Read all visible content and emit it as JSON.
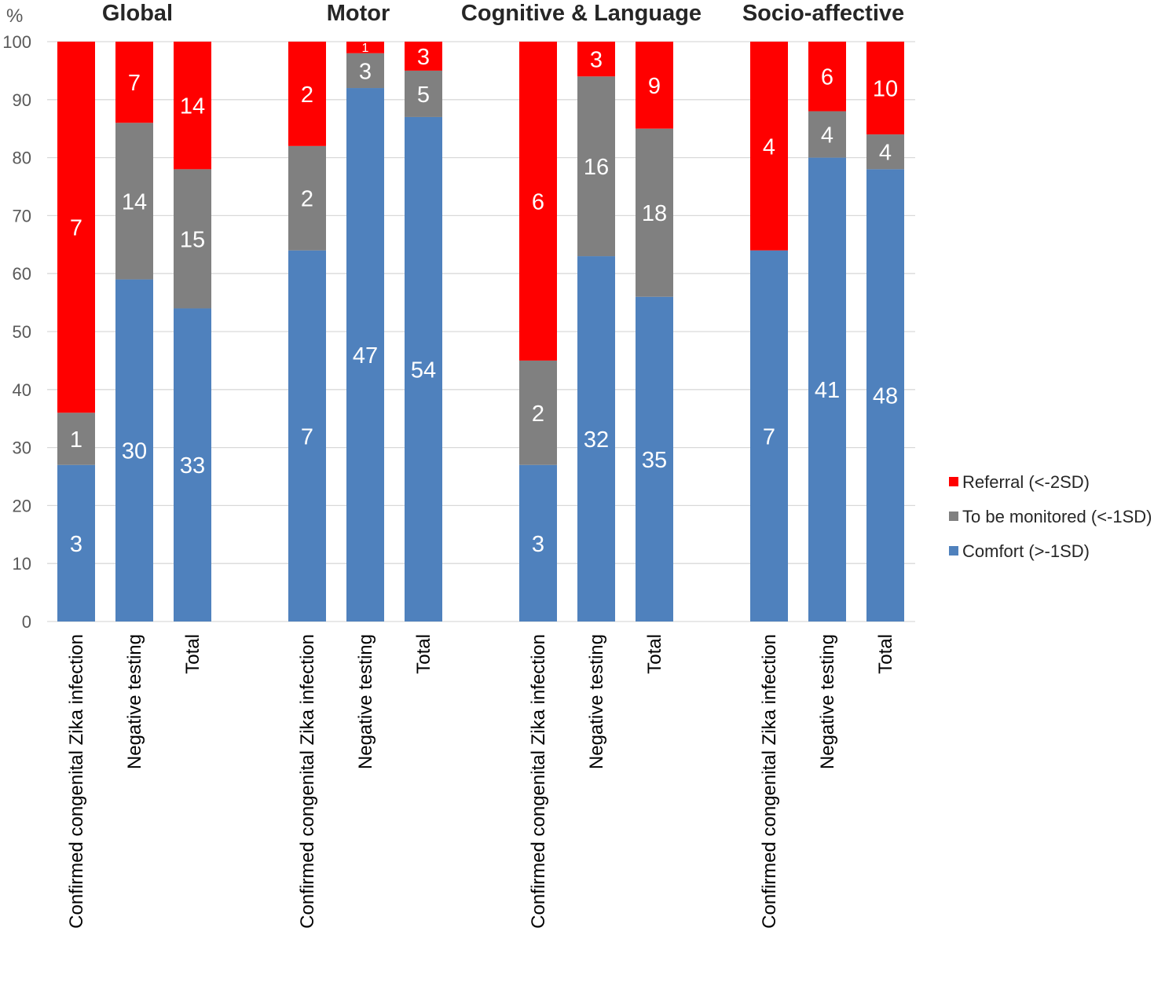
{
  "chart_data": {
    "type": "bar",
    "stacked": true,
    "ylabel": "%",
    "ylim": [
      0,
      100
    ],
    "yticks": [
      "0",
      "10",
      "20",
      "30",
      "40",
      "50",
      "60",
      "70",
      "80",
      "90",
      "100"
    ],
    "grid": true,
    "legend_position": "right",
    "groups": [
      {
        "title": "Global",
        "bars": [
          {
            "category": "Confirmed congenital Zika infection",
            "comfort": 27,
            "monitored": 9,
            "referral": 64,
            "labels": [
              "3",
              "1",
              "7"
            ]
          },
          {
            "category": "Negative testing",
            "comfort": 59,
            "monitored": 27,
            "referral": 14,
            "labels": [
              "30",
              "14",
              "7"
            ]
          },
          {
            "category": "Total",
            "comfort": 54,
            "monitored": 24,
            "referral": 22,
            "labels": [
              "33",
              "15",
              "14"
            ]
          }
        ]
      },
      {
        "title": "Motor",
        "bars": [
          {
            "category": "Confirmed congenital Zika infection",
            "comfort": 64,
            "monitored": 18,
            "referral": 18,
            "labels": [
              "7",
              "2",
              "2"
            ]
          },
          {
            "category": "Negative testing",
            "comfort": 92,
            "monitored": 6,
            "referral": 2,
            "labels": [
              "47",
              "3",
              "1"
            ]
          },
          {
            "category": "Total",
            "comfort": 87,
            "monitored": 8,
            "referral": 5,
            "labels": [
              "54",
              "5",
              "3"
            ]
          }
        ]
      },
      {
        "title": "Cognitive & Language",
        "bars": [
          {
            "category": "Confirmed congenital Zika infection",
            "comfort": 27,
            "monitored": 18,
            "referral": 55,
            "labels": [
              "3",
              "2",
              "6"
            ]
          },
          {
            "category": "Negative testing",
            "comfort": 63,
            "monitored": 31,
            "referral": 6,
            "labels": [
              "32",
              "16",
              "3"
            ]
          },
          {
            "category": "Total",
            "comfort": 56,
            "monitored": 29,
            "referral": 15,
            "labels": [
              "35",
              "18",
              "9"
            ]
          }
        ]
      },
      {
        "title": "Socio-affective",
        "bars": [
          {
            "category": "Confirmed congenital Zika infection",
            "comfort": 64,
            "monitored": 0,
            "referral": 36,
            "labels": [
              "7",
              "",
              "4"
            ]
          },
          {
            "category": "Negative testing",
            "comfort": 80,
            "monitored": 8,
            "referral": 12,
            "labels": [
              "41",
              "4",
              "6"
            ]
          },
          {
            "category": "Total",
            "comfort": 78,
            "monitored": 6,
            "referral": 16,
            "labels": [
              "48",
              "4",
              "10"
            ]
          }
        ]
      }
    ],
    "series": [
      {
        "key": "referral",
        "name": "Referral (<-2SD)",
        "color": "#ff0000"
      },
      {
        "key": "monitored",
        "name": "To be monitored (<-1SD)",
        "color": "#808080"
      },
      {
        "key": "comfort",
        "name": "Comfort (>-1SD)",
        "color": "#4f81bd"
      }
    ]
  }
}
